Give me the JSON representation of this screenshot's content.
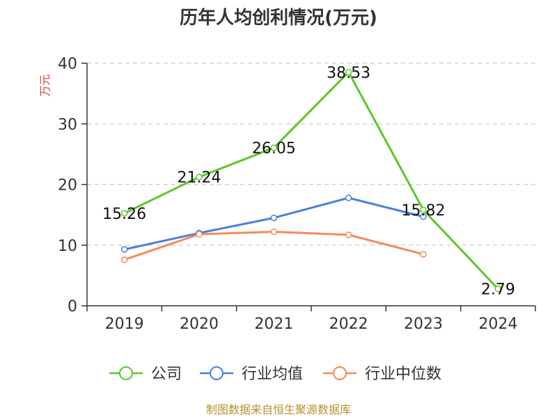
{
  "chart_data": {
    "type": "line",
    "title": "历年人均创利情况(万元)",
    "ylabel": "万元",
    "xlabel": "",
    "categories": [
      "2019",
      "2020",
      "2021",
      "2022",
      "2023",
      "2024"
    ],
    "ylim": [
      0,
      40
    ],
    "yticks": [
      0,
      10,
      20,
      30,
      40
    ],
    "grid": true,
    "series": [
      {
        "name": "公司",
        "color": "#5cc62a",
        "values": [
          15.26,
          21.24,
          26.05,
          38.53,
          15.82,
          2.79
        ],
        "labels": [
          "15.26",
          "21.24",
          "26.05",
          "38.53",
          "15.82",
          "2.79"
        ]
      },
      {
        "name": "行业均值",
        "color": "#4a7fdc",
        "values": [
          9.3,
          12.0,
          14.5,
          17.8,
          14.7,
          null
        ]
      },
      {
        "name": "行业中位数",
        "color": "#f58a59",
        "values": [
          7.6,
          11.8,
          12.2,
          11.7,
          8.5,
          null
        ]
      }
    ],
    "legend_position": "bottom"
  },
  "source": "制图数据来自恒生聚源数据库"
}
